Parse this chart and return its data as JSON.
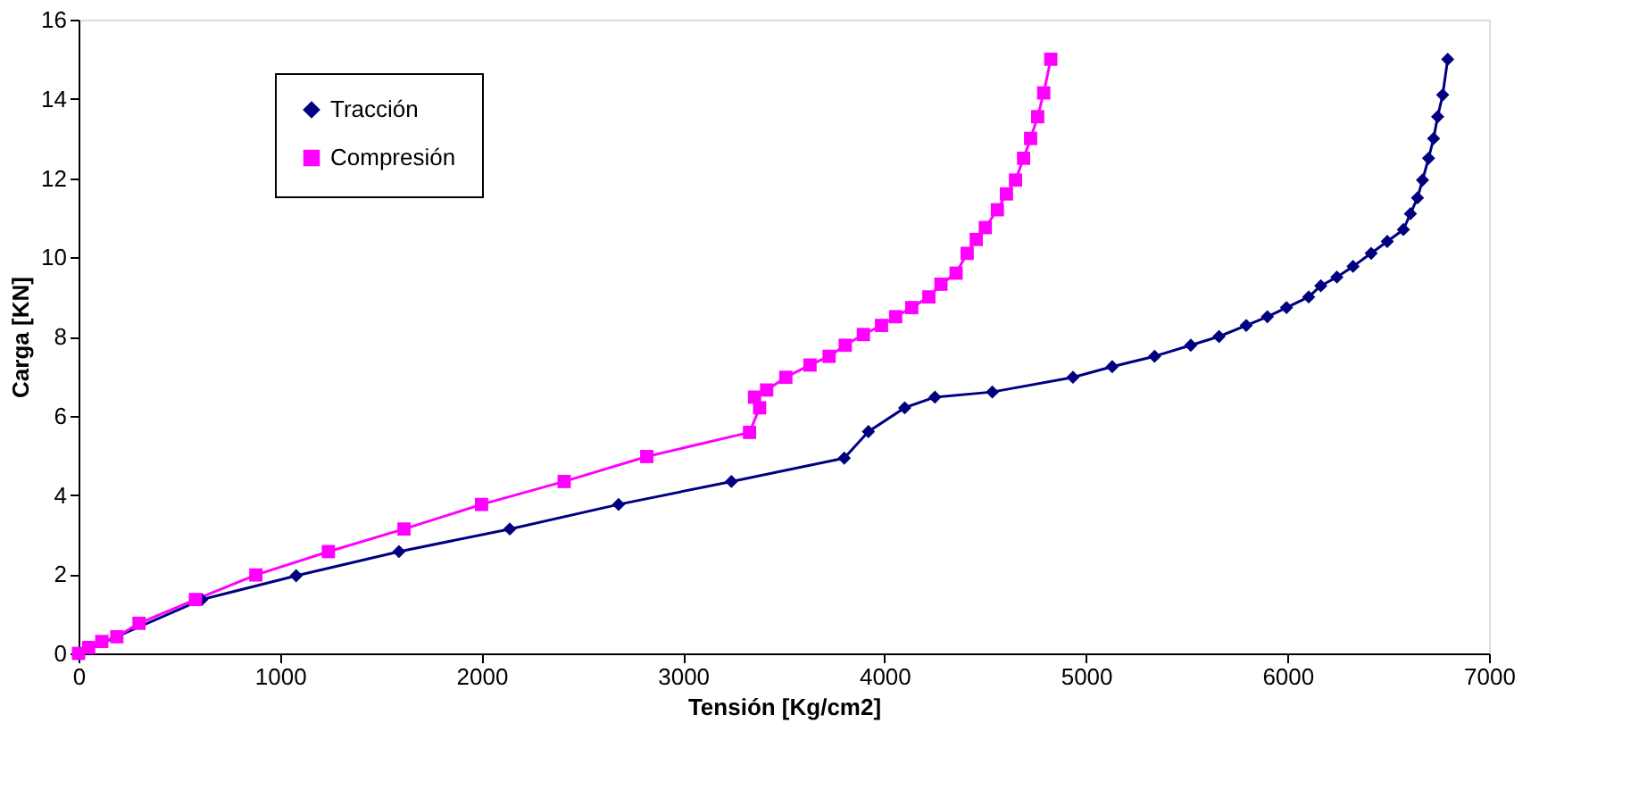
{
  "chart_data": {
    "type": "line",
    "xlabel": "Tensión [Kg/cm2]",
    "ylabel": "Carga [KN]",
    "xlim": [
      0,
      7000
    ],
    "xticks": [
      0,
      1000,
      2000,
      3000,
      4000,
      5000,
      6000,
      7000
    ],
    "ylim": [
      0,
      16
    ],
    "yticks": [
      0,
      2,
      4,
      6,
      8,
      10,
      12,
      14,
      16
    ],
    "grid": false,
    "legend": "top left",
    "series": [
      {
        "name": "Tracción",
        "color": "#000080",
        "marker": "diamond",
        "x": [
          0,
          612,
          1080,
          1590,
          2140,
          2680,
          3240,
          3800,
          3920,
          4100,
          4250,
          4535,
          4935,
          5130,
          5340,
          5520,
          5660,
          5795,
          5900,
          5995,
          6105,
          6165,
          6245,
          6325,
          6415,
          6495,
          6575,
          6610,
          6645,
          6670,
          6700,
          6725,
          6745,
          6770,
          6795
        ],
        "values": [
          0,
          1.36,
          1.96,
          2.57,
          3.14,
          3.76,
          4.34,
          4.93,
          5.6,
          6.2,
          6.47,
          6.6,
          6.97,
          7.24,
          7.5,
          7.78,
          8.0,
          8.28,
          8.5,
          8.73,
          9.0,
          9.28,
          9.5,
          9.77,
          10.1,
          10.4,
          10.7,
          11.1,
          11.5,
          11.95,
          12.5,
          13.0,
          13.55,
          14.1,
          15.0
        ]
      },
      {
        "name": "Compresión",
        "color": "#ff00ff",
        "marker": "square",
        "x": [
          0,
          50,
          115,
          190,
          300,
          580,
          880,
          1240,
          1615,
          2000,
          2410,
          2820,
          3330,
          3380,
          3355,
          3415,
          3510,
          3630,
          3725,
          3805,
          3895,
          3985,
          4055,
          4135,
          4220,
          4280,
          4355,
          4410,
          4455,
          4500,
          4560,
          4605,
          4650,
          4690,
          4725,
          4760,
          4790,
          4825
        ],
        "values": [
          0,
          0.15,
          0.3,
          0.42,
          0.76,
          1.36,
          1.98,
          2.57,
          3.14,
          3.76,
          4.34,
          4.97,
          5.58,
          6.2,
          6.47,
          6.65,
          6.97,
          7.28,
          7.5,
          7.78,
          8.05,
          8.28,
          8.5,
          8.73,
          9.0,
          9.32,
          9.6,
          10.1,
          10.45,
          10.75,
          11.2,
          11.6,
          11.95,
          12.5,
          13.0,
          13.55,
          14.15,
          15.0
        ]
      }
    ]
  }
}
